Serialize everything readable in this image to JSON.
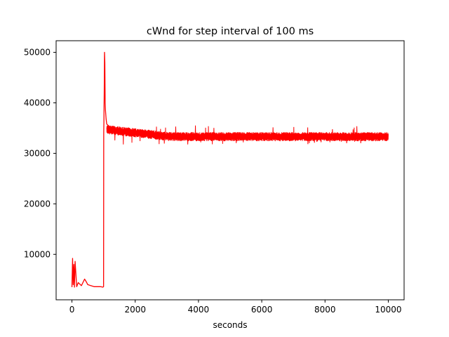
{
  "chart_data": {
    "type": "line",
    "title": "cWnd for step interval of 100 ms",
    "xlabel": "seconds",
    "ylabel": "",
    "xlim": [
      -500,
      10500
    ],
    "ylim": [
      1000,
      52300
    ],
    "x_ticks": [
      0,
      2000,
      4000,
      6000,
      8000,
      10000
    ],
    "y_ticks": [
      10000,
      20000,
      30000,
      40000,
      50000
    ],
    "grid": false,
    "legend": "none",
    "series": [
      {
        "color": "#ff0000",
        "x": [
          0,
          20,
          40,
          60,
          80,
          100,
          150,
          200,
          300,
          400,
          450,
          500,
          600,
          700,
          800,
          900,
          980,
          1000,
          1005,
          1010,
          1020,
          1030,
          1040,
          1050,
          1060,
          1080,
          1100,
          1150,
          1200,
          1300,
          1400,
          1600,
          1800,
          2000,
          2200,
          2500,
          3000,
          3500,
          4000,
          4500,
          5000,
          5500,
          6000,
          6500,
          7000,
          7500,
          8000,
          8500,
          9000,
          9500,
          10000
        ],
        "y": [
          3500,
          9200,
          4000,
          8000,
          3500,
          8600,
          3600,
          4400,
          3800,
          5100,
          4600,
          4000,
          3800,
          3600,
          3600,
          3600,
          3500,
          3600,
          34000,
          36000,
          42000,
          50000,
          48000,
          40000,
          38500,
          36800,
          35800,
          35500,
          35000,
          34600,
          34400,
          34200,
          34000,
          33800,
          33600,
          33500,
          33300,
          33300,
          33200,
          33300,
          33200,
          33300,
          33200,
          33300,
          33200,
          33200,
          33200,
          33300,
          33200,
          33300,
          33200
        ],
        "band": {
          "x_start": 1100,
          "x_end": 10000,
          "center": 33300,
          "spread": 1800,
          "spike_max": 35600,
          "spike_min": 31700
        }
      }
    ]
  }
}
